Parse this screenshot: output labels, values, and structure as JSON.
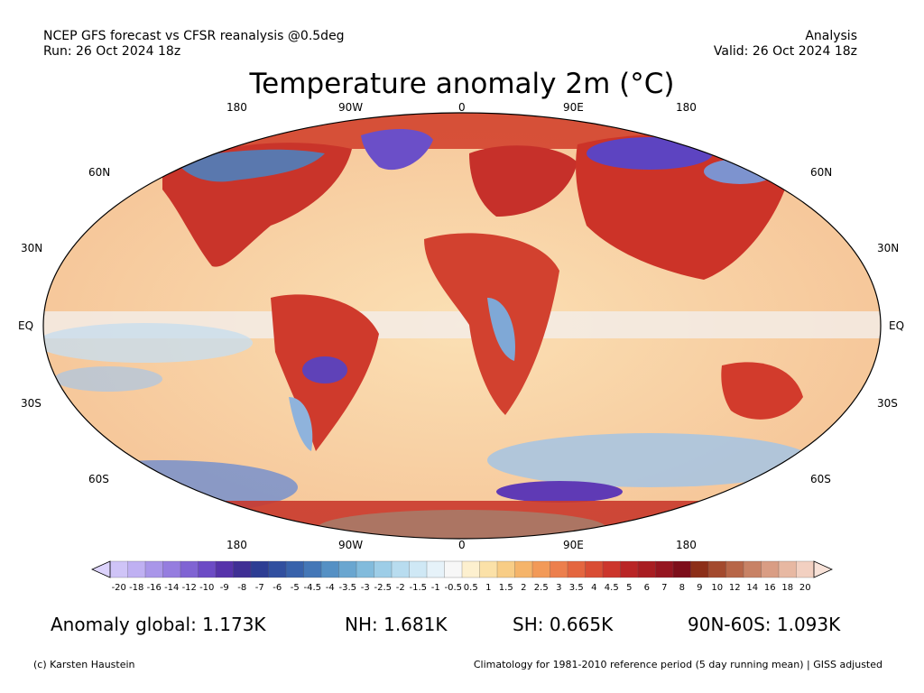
{
  "header": {
    "left_line1": "NCEP GFS forecast vs CFSR reanalysis @0.5deg",
    "left_line2": "Run: 26 Oct 2024 18z",
    "right_line1": "Analysis",
    "right_line2": "Valid: 26 Oct 2024 18z"
  },
  "title": "Temperature anomaly 2m (°C)",
  "map": {
    "projection": "Robinson",
    "lon_labels_top": [
      "180",
      "90W",
      "0",
      "90E",
      "180"
    ],
    "lon_labels_bottom": [
      "180",
      "90W",
      "0",
      "90E",
      "180"
    ],
    "lat_labels_left": [
      "60N",
      "30N",
      "EQ",
      "30S",
      "60S"
    ],
    "lat_labels_right": [
      "60N",
      "30N",
      "EQ",
      "30S",
      "60S"
    ]
  },
  "colorbar": {
    "ticks": [
      "-20",
      "-18",
      "-16",
      "-14",
      "-12",
      "-10",
      "-9",
      "-8",
      "-7",
      "-6",
      "-5",
      "-4.5",
      "-4",
      "-3.5",
      "-3",
      "-2.5",
      "-2",
      "-1.5",
      "-1",
      "-0.5",
      "0.5",
      "1",
      "1.5",
      "2",
      "2.5",
      "3",
      "3.5",
      "4",
      "4.5",
      "5",
      "6",
      "7",
      "8",
      "9",
      "10",
      "12",
      "14",
      "16",
      "18",
      "20"
    ],
    "colors": [
      "#cfc4f7",
      "#bfb0f2",
      "#a996e9",
      "#957ddf",
      "#8064d3",
      "#6c4bc5",
      "#5633aa",
      "#3f2f94",
      "#2d3d93",
      "#314f9f",
      "#3862ab",
      "#4477b7",
      "#5590c4",
      "#6aa6d0",
      "#82bbdc",
      "#9dcde7",
      "#b8dcef",
      "#cfe8f5",
      "#e6f2f9",
      "#f7f7f7",
      "#fdf0cf",
      "#fbe1a8",
      "#f8cd86",
      "#f5b46a",
      "#f29a58",
      "#ec7f4d",
      "#e4663f",
      "#d94d34",
      "#cc362c",
      "#b92526",
      "#a81d22",
      "#951520",
      "#7d0e1a",
      "#8c2f19",
      "#a34a2e",
      "#b76648",
      "#c88265",
      "#d99d84",
      "#e7b8a2",
      "#f2d0c1"
    ],
    "under_color": "#dcd3fb",
    "over_color": "#f8e2d8"
  },
  "stats": {
    "global": "Anomaly global: 1.173K",
    "nh": "NH: 1.681K",
    "sh": "SH: 0.665K",
    "polar": "90N-60S: 1.093K"
  },
  "footer": {
    "credit": "(c) Karsten Haustein",
    "climatology": "Climatology for 1981-2010 reference period (5 day running mean) | GISS adjusted"
  }
}
